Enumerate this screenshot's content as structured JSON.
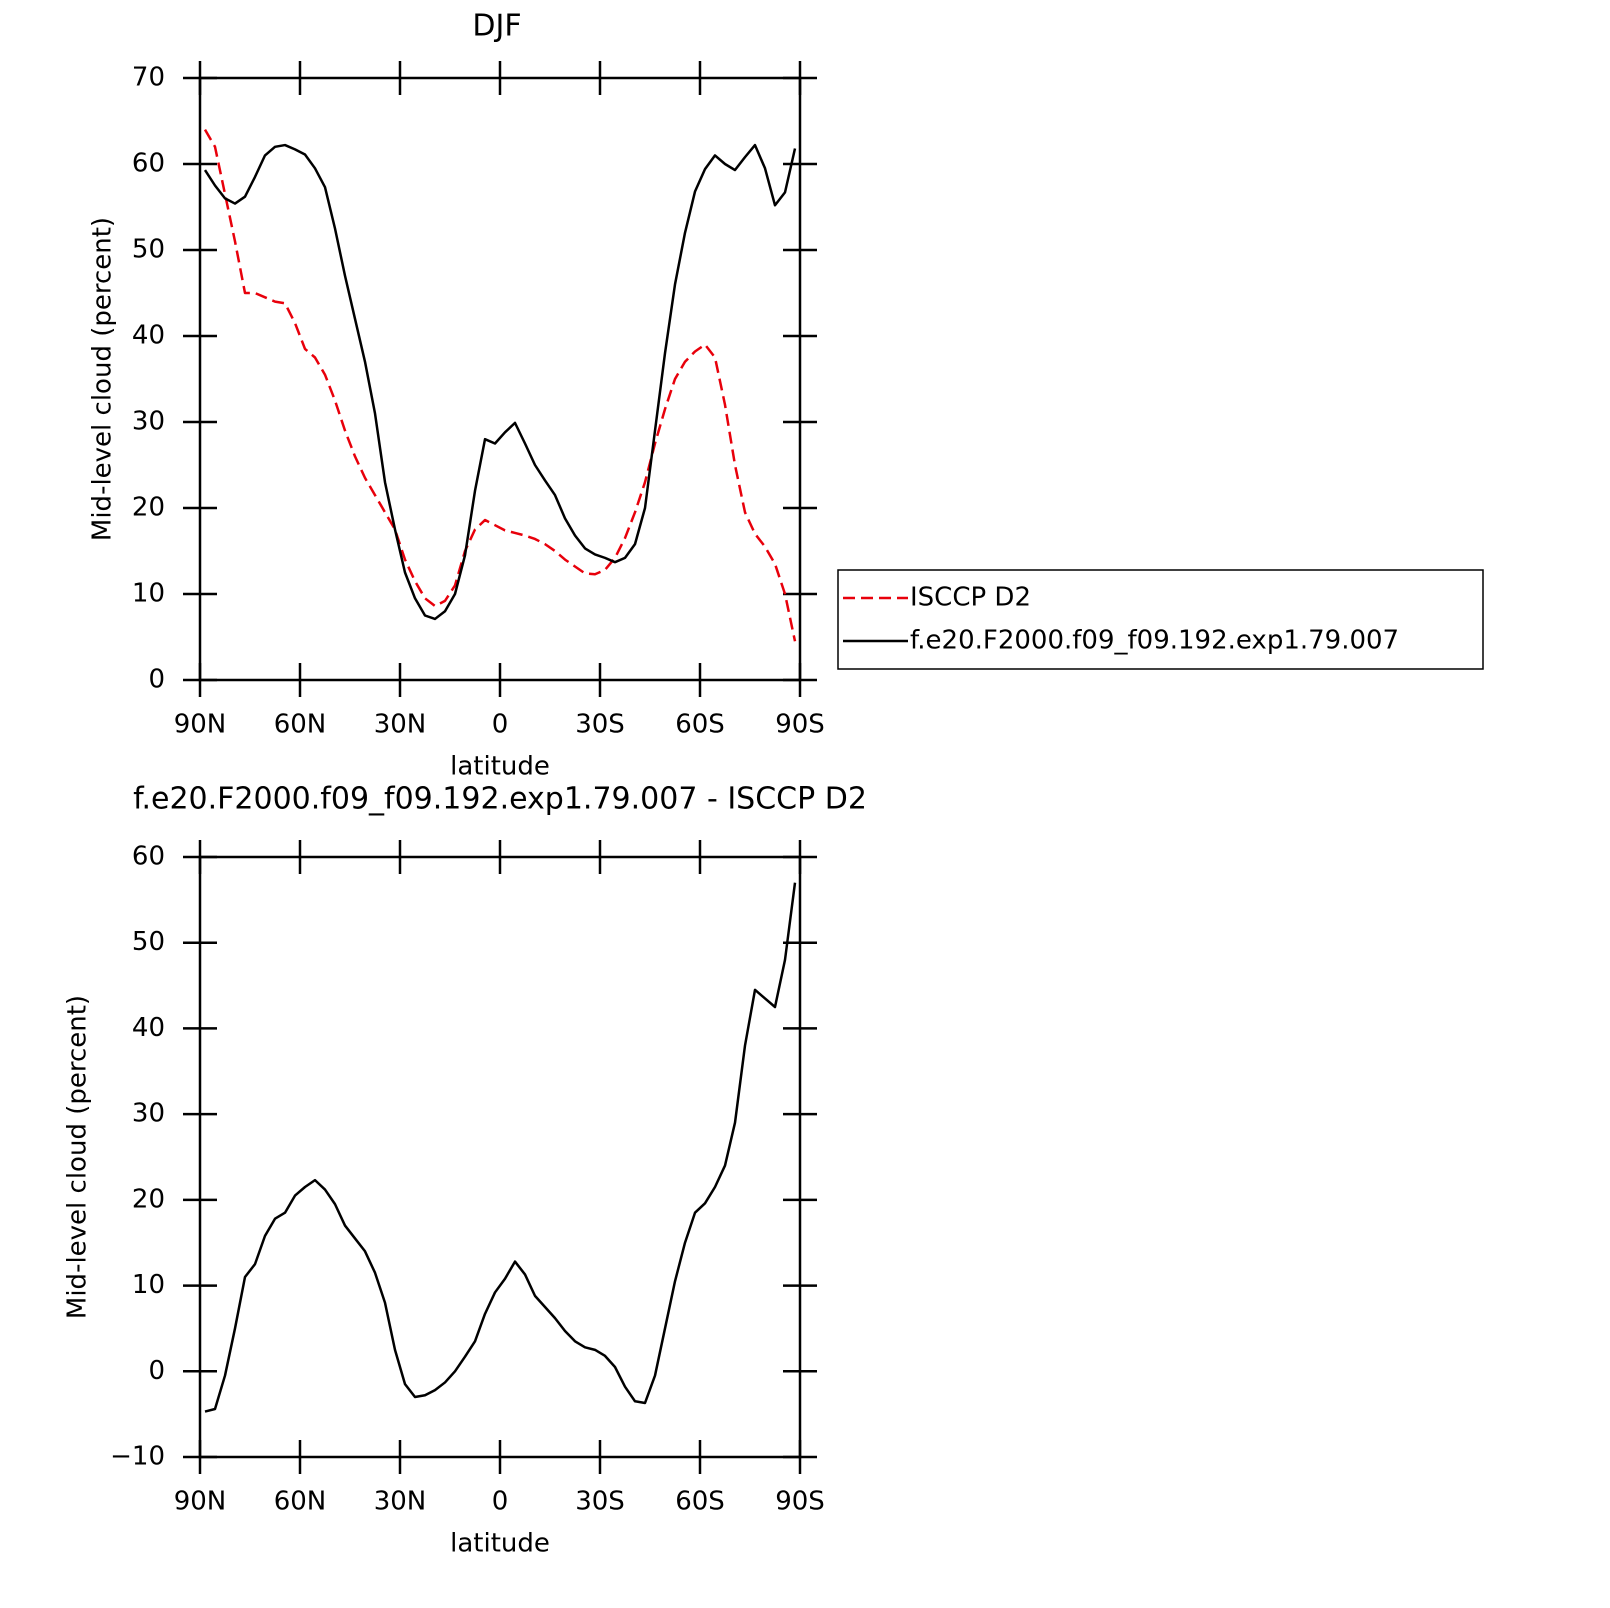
{
  "chart_data": [
    {
      "type": "line",
      "title": "DJF",
      "xlabel": "latitude",
      "ylabel": "Mid-level cloud (percent)",
      "x": [
        88.5,
        85.5,
        82.5,
        79.5,
        76.5,
        73.5,
        70.5,
        67.5,
        64.5,
        61.5,
        58.5,
        55.5,
        52.5,
        49.5,
        46.5,
        43.5,
        40.5,
        37.5,
        34.5,
        31.5,
        28.5,
        25.5,
        22.5,
        19.5,
        16.5,
        13.5,
        10.5,
        7.5,
        4.5,
        1.5,
        -1.5,
        -4.5,
        -7.5,
        -10.5,
        -13.5,
        -16.5,
        -19.5,
        -22.5,
        -25.5,
        -28.5,
        -31.5,
        -34.5,
        -37.5,
        -40.5,
        -43.5,
        -46.5,
        -49.5,
        -52.5,
        -55.5,
        -58.5,
        -61.5,
        -64.5,
        -67.5,
        -70.5,
        -73.5,
        -76.5,
        -79.5,
        -82.5,
        -85.5,
        -88.5
      ],
      "xlim": [
        90,
        -90
      ],
      "xticks": [
        {
          "value": 90,
          "label": "90N"
        },
        {
          "value": 60,
          "label": "60N"
        },
        {
          "value": 30,
          "label": "30N"
        },
        0,
        {
          "value": -30,
          "label": "30S"
        },
        {
          "value": -60,
          "label": "60S"
        },
        {
          "value": -90,
          "label": "90S"
        }
      ],
      "ylim": [
        0,
        70
      ],
      "yticks": [
        0,
        10,
        20,
        30,
        40,
        50,
        60,
        70
      ],
      "legend": "right",
      "series": [
        {
          "name": "ISCCP D2",
          "color": "#e8000b",
          "dashed": true,
          "values": [
            64,
            62,
            56.5,
            51,
            45,
            45,
            44.5,
            44,
            43.8,
            41.5,
            38.5,
            37.5,
            35.5,
            32.5,
            29,
            26,
            23.5,
            21.5,
            19.5,
            17.5,
            14,
            11.5,
            9.5,
            8.6,
            9.2,
            11,
            15,
            17.5,
            18.6,
            18,
            17.4,
            17.1,
            16.8,
            16.4,
            15.8,
            15,
            14,
            13.2,
            12.4,
            12.3,
            12.8,
            14.2,
            16.5,
            19.5,
            23,
            27.5,
            31.5,
            35,
            37,
            38.2,
            39,
            37.5,
            32,
            25,
            19.5,
            17,
            15.5,
            13.5,
            10,
            4.5
          ]
        },
        {
          "name": "f.e20.F2000.f09_f09.192.exp1.79.007",
          "color": "#000000",
          "dashed": false,
          "values": [
            59.3,
            57.5,
            56,
            55.4,
            56.2,
            58.5,
            61,
            62,
            62.2,
            61.7,
            61.1,
            59.5,
            57.3,
            52.5,
            47,
            42,
            37,
            31,
            23,
            17.5,
            12.5,
            9.5,
            7.5,
            7.1,
            8,
            10,
            14.5,
            22,
            28,
            27.5,
            28.8,
            29.9,
            27.5,
            25,
            23.2,
            21.5,
            18.8,
            16.8,
            15.3,
            14.6,
            14.2,
            13.7,
            14.2,
            15.8,
            20,
            29,
            38,
            46,
            52,
            56.8,
            59.4,
            61,
            60,
            59.3,
            60.8,
            62.2,
            59.5,
            55.2,
            56.7,
            61.8
          ]
        }
      ]
    },
    {
      "type": "line",
      "title": "f.e20.F2000.f09_f09.192.exp1.79.007 - ISCCP D2",
      "xlabel": "latitude",
      "ylabel": "Mid-level cloud (percent)",
      "x": [
        88.5,
        85.5,
        82.5,
        79.5,
        76.5,
        73.5,
        70.5,
        67.5,
        64.5,
        61.5,
        58.5,
        55.5,
        52.5,
        49.5,
        46.5,
        43.5,
        40.5,
        37.5,
        34.5,
        31.5,
        28.5,
        25.5,
        22.5,
        19.5,
        16.5,
        13.5,
        10.5,
        7.5,
        4.5,
        1.5,
        -1.5,
        -4.5,
        -7.5,
        -10.5,
        -13.5,
        -16.5,
        -19.5,
        -22.5,
        -25.5,
        -28.5,
        -31.5,
        -34.5,
        -37.5,
        -40.5,
        -43.5,
        -46.5,
        -49.5,
        -52.5,
        -55.5,
        -58.5,
        -61.5,
        -64.5,
        -67.5,
        -70.5,
        -73.5,
        -76.5,
        -79.5,
        -82.5,
        -85.5,
        -88.5
      ],
      "xlim": [
        90,
        -90
      ],
      "xticks": [
        {
          "value": 90,
          "label": "90N"
        },
        {
          "value": 60,
          "label": "60N"
        },
        {
          "value": 30,
          "label": "30N"
        },
        0,
        {
          "value": -30,
          "label": "30S"
        },
        {
          "value": -60,
          "label": "60S"
        },
        {
          "value": -90,
          "label": "90S"
        }
      ],
      "ylim": [
        -10,
        60
      ],
      "yticks": [
        {
          "value": -10,
          "label": "−10"
        },
        0,
        10,
        20,
        30,
        40,
        50,
        60
      ],
      "color": "#000000",
      "values": [
        -4.7,
        -4.4,
        -0.5,
        5,
        11,
        12.5,
        15.8,
        17.8,
        18.5,
        20.5,
        21.5,
        22.3,
        21.2,
        19.5,
        17,
        15.5,
        14,
        11.5,
        8,
        2.5,
        -1.5,
        -3,
        -2.8,
        -2.2,
        -1.3,
        0,
        1.7,
        3.5,
        6.7,
        9.2,
        10.8,
        12.8,
        11.3,
        8.8,
        7.5,
        6.2,
        4.7,
        3.5,
        2.8,
        2.5,
        1.8,
        0.5,
        -1.8,
        -3.5,
        -3.7,
        -0.5,
        5,
        10.5,
        15,
        18.5,
        19.6,
        21.5,
        24,
        29,
        38,
        44.5,
        43.5,
        42.5,
        48,
        57
      ]
    }
  ]
}
